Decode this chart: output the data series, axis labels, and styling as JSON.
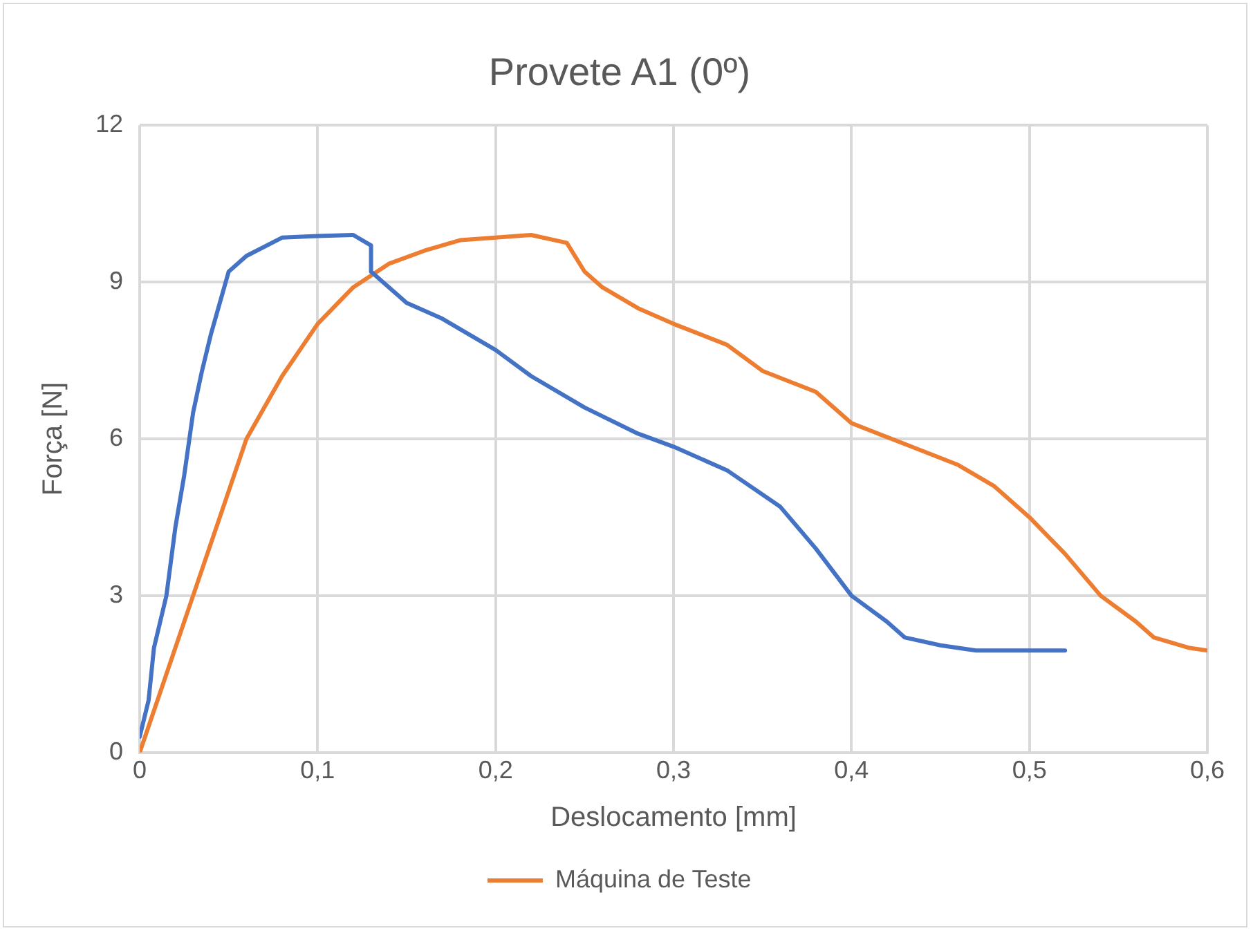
{
  "chart_data": {
    "type": "line",
    "title": "Provete A1 (0º)",
    "xlabel": "Deslocamento [mm]",
    "ylabel": "Força [N]",
    "xlim": [
      0,
      0.6
    ],
    "xticks": [
      {
        "value": 0,
        "label": "0"
      },
      {
        "value": 0.1,
        "label": "0,1"
      },
      {
        "value": 0.2,
        "label": "0,2"
      },
      {
        "value": 0.3,
        "label": "0,3"
      },
      {
        "value": 0.4,
        "label": "0,4"
      },
      {
        "value": 0.5,
        "label": "0,5"
      },
      {
        "value": 0.6,
        "label": "0,6"
      }
    ],
    "ylim": [
      0,
      12
    ],
    "yticks": [
      0,
      3,
      6,
      9,
      12
    ],
    "grid": true,
    "legend": "bottom",
    "marker": "none",
    "line_style": "solid",
    "series": [
      {
        "color": "#4472c4",
        "x": [
          0,
          0.005,
          0.008,
          0.015,
          0.02,
          0.025,
          0.03,
          0.035,
          0.04,
          0.045,
          0.05,
          0.06,
          0.08,
          0.1,
          0.12,
          0.13,
          0.13,
          0.15,
          0.17,
          0.2,
          0.22,
          0.25,
          0.28,
          0.3,
          0.33,
          0.36,
          0.38,
          0.4,
          0.42,
          0.43,
          0.45,
          0.47,
          0.52
        ],
        "values": [
          0.3,
          1,
          2,
          3,
          4.3,
          5.3,
          6.5,
          7.3,
          8,
          8.6,
          9.2,
          9.5,
          9.85,
          9.88,
          9.9,
          9.7,
          9.2,
          8.6,
          8.3,
          7.7,
          7.2,
          6.6,
          6.1,
          5.85,
          5.4,
          4.7,
          3.9,
          3,
          2.5,
          2.2,
          2.05,
          1.95,
          1.95
        ]
      },
      {
        "name": "Máquina de Teste",
        "color": "#ed7d31",
        "x": [
          0,
          0.01,
          0.02,
          0.03,
          0.04,
          0.05,
          0.06,
          0.08,
          0.1,
          0.12,
          0.14,
          0.16,
          0.18,
          0.2,
          0.22,
          0.24,
          0.25,
          0.26,
          0.28,
          0.3,
          0.33,
          0.35,
          0.38,
          0.4,
          0.43,
          0.46,
          0.48,
          0.5,
          0.52,
          0.54,
          0.56,
          0.57,
          0.59,
          0.6
        ],
        "values": [
          0,
          1,
          2,
          3,
          4,
          5,
          6,
          7.2,
          8.2,
          8.9,
          9.35,
          9.6,
          9.8,
          9.85,
          9.9,
          9.75,
          9.2,
          8.9,
          8.5,
          8.2,
          7.8,
          7.3,
          6.9,
          6.3,
          5.9,
          5.5,
          5.1,
          4.5,
          3.8,
          3,
          2.5,
          2.2,
          2,
          1.95
        ]
      }
    ]
  }
}
